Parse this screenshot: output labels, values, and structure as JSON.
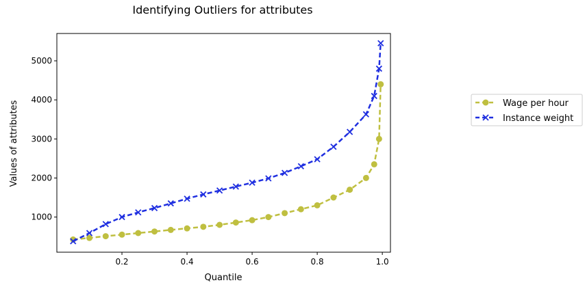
{
  "chart_data": {
    "type": "line",
    "title": "Identifying Outliers for attributes",
    "xlabel": "Quantile",
    "ylabel": "Values of attributes",
    "xlim": [
      0.0,
      1.025
    ],
    "ylim": [
      100,
      5700
    ],
    "xticks": [
      "0.2",
      "0.4",
      "0.6",
      "0.8",
      "1.0"
    ],
    "yticks": [
      "1000",
      "2000",
      "3000",
      "4000",
      "5000"
    ],
    "grid": false,
    "legend_position": "outside-right",
    "series": [
      {
        "name": "Wage per hour",
        "color": "#bfbf40",
        "marker": "circle",
        "linestyle": "dashed",
        "x": [
          0.05,
          0.1,
          0.15,
          0.2,
          0.25,
          0.3,
          0.35,
          0.4,
          0.45,
          0.5,
          0.55,
          0.6,
          0.65,
          0.7,
          0.75,
          0.8,
          0.85,
          0.9,
          0.95,
          0.975,
          0.99,
          0.995
        ],
        "y": [
          425,
          465,
          510,
          550,
          590,
          630,
          670,
          710,
          750,
          800,
          860,
          920,
          1000,
          1100,
          1200,
          1300,
          1500,
          1700,
          2000,
          2350,
          3000,
          4400
        ]
      },
      {
        "name": "Instance weight",
        "color": "#1f2fe0",
        "marker": "x",
        "linestyle": "dashed",
        "x": [
          0.05,
          0.1,
          0.15,
          0.2,
          0.25,
          0.3,
          0.35,
          0.4,
          0.45,
          0.5,
          0.55,
          0.6,
          0.65,
          0.7,
          0.75,
          0.8,
          0.85,
          0.9,
          0.95,
          0.975,
          0.99,
          0.995
        ],
        "y": [
          380,
          590,
          820,
          1000,
          1120,
          1230,
          1350,
          1470,
          1580,
          1680,
          1780,
          1880,
          1990,
          2130,
          2300,
          2480,
          2800,
          3180,
          3630,
          4100,
          4800,
          5450
        ]
      }
    ]
  }
}
